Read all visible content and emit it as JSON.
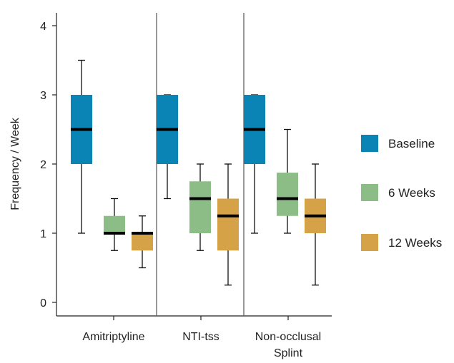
{
  "chart_data": {
    "type": "boxplot",
    "title": "",
    "xlabel": "",
    "ylabel": "Frequency / Week",
    "ylim": [
      0,
      4
    ],
    "yticks": [
      0,
      1,
      2,
      3,
      4
    ],
    "grid": false,
    "legend_position": "right",
    "categories": [
      {
        "lines": [
          "Amitriptyline"
        ]
      },
      {
        "lines": [
          "NTI-tss"
        ]
      },
      {
        "lines": [
          "Non-occlusal",
          "Splint"
        ]
      }
    ],
    "series": [
      {
        "name": "Baseline",
        "color": "#0a84b4",
        "boxes": [
          {
            "min": 1.0,
            "q1": 2.0,
            "median": 2.5,
            "q3": 3.0,
            "max": 3.5
          },
          {
            "min": 1.5,
            "q1": 2.0,
            "median": 2.5,
            "q3": 3.0,
            "max": 3.0
          },
          {
            "min": 1.0,
            "q1": 2.0,
            "median": 2.5,
            "q3": 3.0,
            "max": 3.0
          }
        ]
      },
      {
        "name": "6 Weeks",
        "color": "#8dbd86",
        "boxes": [
          {
            "min": 0.75,
            "q1": 1.0,
            "median": 1.0,
            "q3": 1.25,
            "max": 1.5
          },
          {
            "min": 0.75,
            "q1": 1.0,
            "median": 1.5,
            "q3": 1.75,
            "max": 2.0
          },
          {
            "min": 1.0,
            "q1": 1.25,
            "median": 1.5,
            "q3": 1.875,
            "max": 2.5
          }
        ]
      },
      {
        "name": "12 Weeks",
        "color": "#d6a247",
        "boxes": [
          {
            "min": 0.5,
            "q1": 0.75,
            "median": 1.0,
            "q3": 1.0,
            "max": 1.25
          },
          {
            "min": 0.25,
            "q1": 0.75,
            "median": 1.25,
            "q3": 1.5,
            "max": 2.0
          },
          {
            "min": 0.25,
            "q1": 1.0,
            "median": 1.25,
            "q3": 1.5,
            "max": 2.0
          }
        ]
      }
    ]
  }
}
